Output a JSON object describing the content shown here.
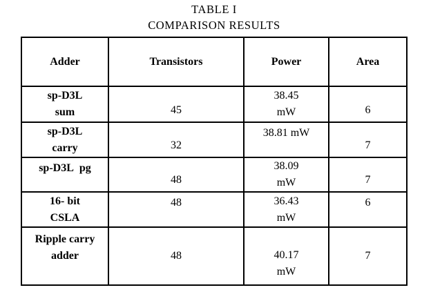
{
  "page": {
    "background": "#ffffff",
    "text_color": "#000000"
  },
  "caption": {
    "line1": "TABLE I",
    "line2": "COMPARISON RESULTS"
  },
  "table": {
    "headers": [
      "Adder",
      "Transistors",
      "Power",
      "Area"
    ],
    "rows": [
      {
        "adder": [
          "sp-D3L",
          "sum"
        ],
        "transistors": "45",
        "power": [
          "38.45",
          "mW"
        ],
        "area": "6"
      },
      {
        "adder": [
          "sp-D3L",
          "carry"
        ],
        "transistors": "32",
        "power": [
          "38.81 mW"
        ],
        "area": "7"
      },
      {
        "adder": [
          "sp-D3L  pg"
        ],
        "transistors": "48",
        "power": [
          "38.09",
          "mW"
        ],
        "area": "7"
      },
      {
        "adder": [
          "16- bit",
          "CSLA"
        ],
        "transistors": "48",
        "power": [
          "36.43",
          "mW"
        ],
        "area": "6"
      },
      {
        "adder": [
          "Ripple carry",
          "adder"
        ],
        "transistors": "48",
        "power": [
          "40.17",
          "mW"
        ],
        "area": "7"
      }
    ]
  }
}
